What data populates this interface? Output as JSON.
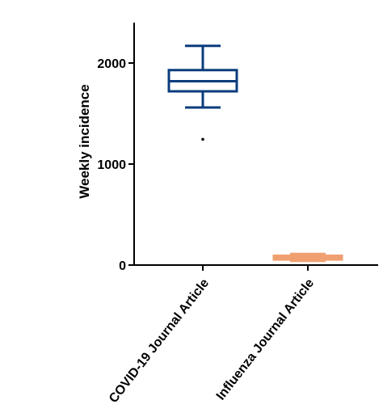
{
  "chart_data": {
    "type": "box",
    "title": "",
    "xlabel": "",
    "ylabel": "Weekly incidence",
    "ylim": [
      0,
      2400
    ],
    "yticks": [
      0,
      1000,
      2000
    ],
    "ytick_labels": [
      "0",
      "1000",
      "2000"
    ],
    "grid": false,
    "legend": "none",
    "series": [
      {
        "name": "COVID-19 Journal Article",
        "color": "#0b3c7d",
        "whisker_low": 1560,
        "q1": 1720,
        "median": 1820,
        "q3": 1930,
        "whisker_high": 2170,
        "outliers": [
          1245
        ]
      },
      {
        "name": "Influenza Journal Article",
        "color": "#f0a070",
        "whisker_low": 42,
        "q1": 55,
        "median": 75,
        "q3": 92,
        "whisker_high": 110,
        "outliers": []
      }
    ]
  }
}
